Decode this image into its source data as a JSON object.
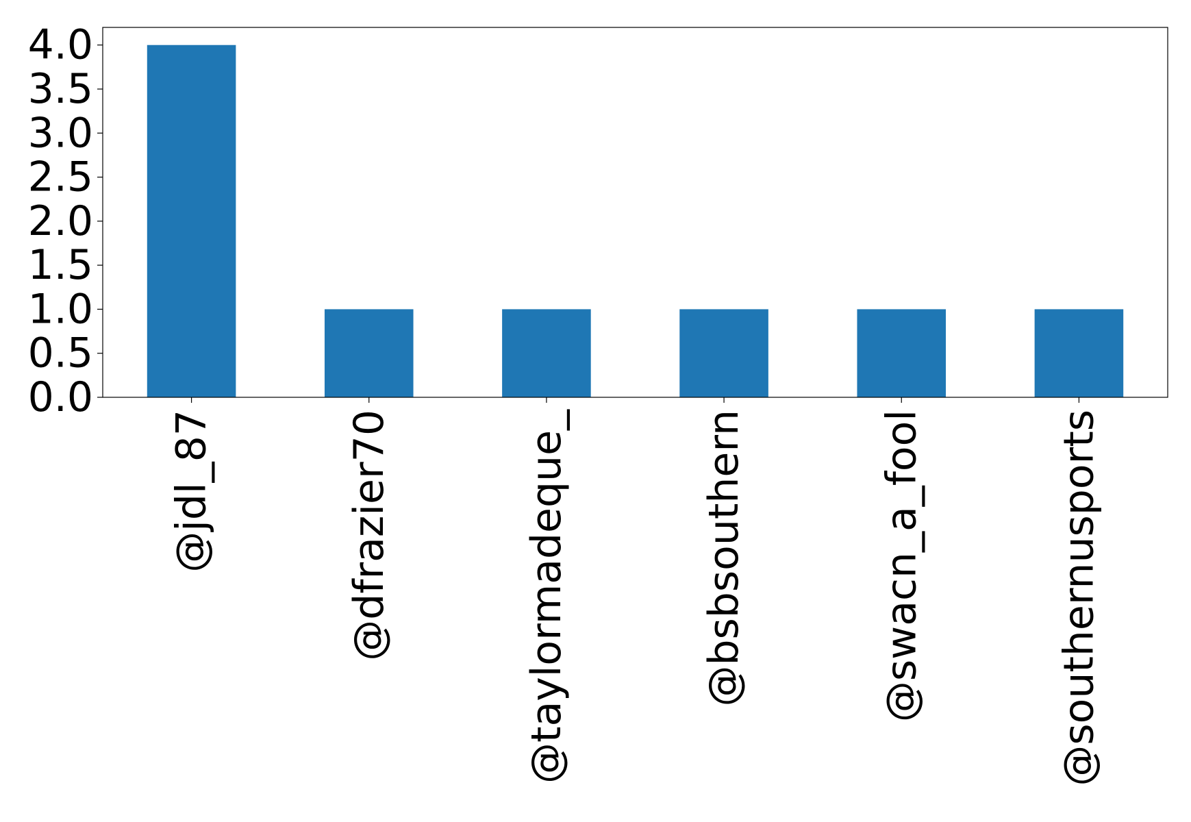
{
  "chart_data": {
    "type": "bar",
    "title": "",
    "xlabel": "",
    "ylabel": "",
    "categories": [
      "@jdl_87",
      "@dfrazier70",
      "@taylormadeque_",
      "@bsbsouthern",
      "@swacn_a_fool",
      "@southernusports"
    ],
    "values": [
      4,
      1,
      1,
      1,
      1,
      1
    ],
    "ylim": [
      0,
      4.2
    ],
    "yticks": [
      0.0,
      0.5,
      1.0,
      1.5,
      2.0,
      2.5,
      3.0,
      3.5,
      4.0
    ],
    "ytick_labels": [
      "0.0",
      "0.5",
      "1.0",
      "1.5",
      "2.0",
      "2.5",
      "3.0",
      "3.5",
      "4.0"
    ],
    "bar_color": "#1f77b4",
    "grid": false,
    "legend": "none"
  }
}
